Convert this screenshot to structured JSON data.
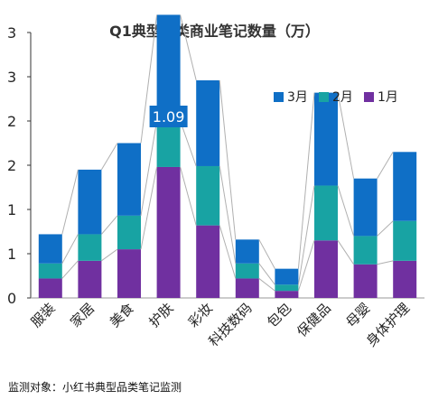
{
  "chart_data": {
    "type": "bar",
    "stacked": true,
    "title": "Q1典型品类商业笔记数量（万）",
    "categories": [
      "服装",
      "家居",
      "美食",
      "护肤",
      "彩妆",
      "科技数码",
      "包包",
      "保健品",
      "母婴",
      "身体护理"
    ],
    "series": [
      {
        "name": "1月",
        "color": "#7030A0",
        "values": [
          0.22,
          0.42,
          0.55,
          1.48,
          0.82,
          0.22,
          0.08,
          0.65,
          0.38,
          0.42
        ]
      },
      {
        "name": "2月",
        "color": "#18A3A3",
        "values": [
          0.17,
          0.3,
          0.38,
          0.52,
          0.67,
          0.17,
          0.07,
          0.62,
          0.32,
          0.45
        ]
      },
      {
        "name": "3月",
        "color": "#0F6FC6",
        "values": [
          0.33,
          0.73,
          0.82,
          1.2,
          0.97,
          0.27,
          0.18,
          1.05,
          0.65,
          0.78
        ]
      }
    ],
    "ylim": [
      0,
      3
    ],
    "ytick_labels": [
      "0",
      "1",
      "1",
      "2",
      "2",
      "3",
      "3"
    ],
    "data_labels": [
      {
        "category": "护肤",
        "text": "1.09"
      }
    ],
    "legend": "top-right",
    "series_lines": true,
    "grid": false
  },
  "footer": "监测对象：小红书典型品类笔记监测"
}
